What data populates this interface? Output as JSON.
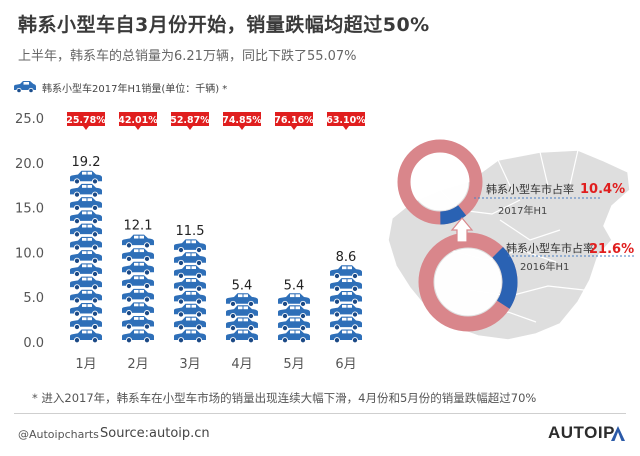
{
  "header": {
    "title": "韩系小型车自3月份开始，销量跌幅均超过50%",
    "subtitle": "上半年，韩系车的总销量为6.21万辆，同比下跌了55.07%"
  },
  "legend": {
    "note": "韩系小型车2017年H1销量(单位：千辆) *"
  },
  "colors": {
    "car": "#2e6fb8",
    "banner": "#e01e1e",
    "ring_outer": "#d9868b",
    "share": "#2a62b3",
    "map": "#dedede",
    "highlight": "#e01e1e"
  },
  "chart_data": {
    "type": "bar",
    "categories": [
      "1月",
      "2月",
      "3月",
      "4月",
      "5月",
      "6月"
    ],
    "values": [
      19.2,
      12.1,
      11.5,
      5.4,
      5.4,
      8.6
    ],
    "value_labels": [
      "19.2",
      "12.1",
      "11.5",
      "5.4",
      "5.4",
      "8.6"
    ],
    "decline_labels": [
      "25.78%",
      "42.01%",
      "52.87%",
      "74.85%",
      "76.16%",
      "63.10%"
    ],
    "ylim": [
      0,
      25
    ],
    "yticks": [
      "0.0",
      "5.0",
      "10.0",
      "15.0",
      "20.0",
      "25.0"
    ],
    "grid": false,
    "legend_position": "top-left"
  },
  "share": {
    "y2017": {
      "value": 10.4,
      "label": "韩系小型车市占率",
      "value_text": "10.4%",
      "period": "2017年H1"
    },
    "y2016": {
      "value": 21.6,
      "label": "韩系小型车市占率",
      "value_text": "21.6%",
      "period": "2016年H1"
    }
  },
  "footer": {
    "note": "* 进入2017年，韩系车在小型车市场的销量出现连续大幅下滑，4月份和5月份的销量跌幅超过70%",
    "handle": "@Autoipcharts",
    "source": "Source:autoip.cn",
    "brand": "AUTOIP"
  }
}
